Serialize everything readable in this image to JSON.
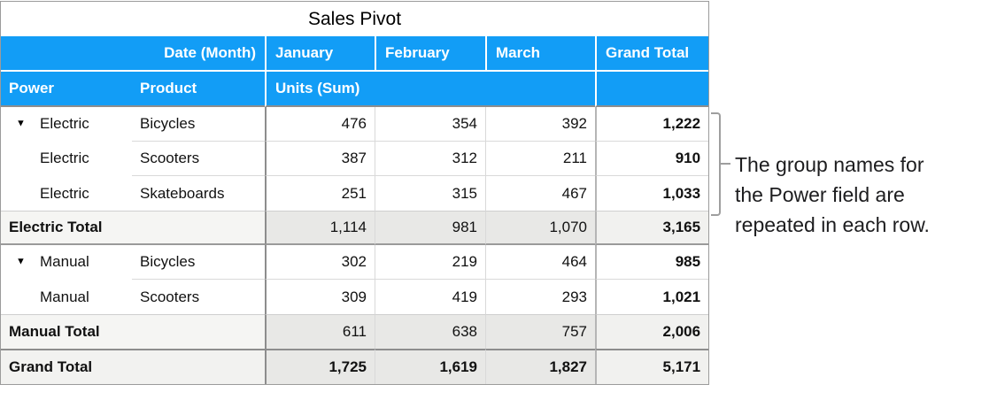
{
  "title": "Sales Pivot",
  "icons": {
    "disclosure": "▼"
  },
  "colors": {
    "header_blue": "#129DF6",
    "line_dark": "#8D8D8D",
    "line_light": "#D9D9D9",
    "total_row_bg": "#E8E8E6",
    "total_label_bg": "#F5F5F3",
    "grand_total_cell_bg": "#F1F1EF",
    "bracket_gray": "#9E9E9E"
  },
  "table": {
    "header_row1": {
      "date_label": "Date (Month)",
      "months": [
        "January",
        "February",
        "March"
      ],
      "grand_total": "Grand Total"
    },
    "header_row2": {
      "power": "Power",
      "product": "Product",
      "units": "Units (Sum)"
    },
    "rows": [
      {
        "type": "data",
        "disclosure": true,
        "power": "Electric",
        "product": "Bicycles",
        "values": [
          "476",
          "354",
          "392"
        ],
        "total": "1,222"
      },
      {
        "type": "data",
        "disclosure": false,
        "power": "Electric",
        "product": "Scooters",
        "values": [
          "387",
          "312",
          "211"
        ],
        "total": "910"
      },
      {
        "type": "data",
        "disclosure": false,
        "power": "Electric",
        "product": "Skateboards",
        "values": [
          "251",
          "315",
          "467"
        ],
        "total": "1,033"
      },
      {
        "type": "subtotal",
        "label": "Electric Total",
        "values": [
          "1,114",
          "981",
          "1,070"
        ],
        "total": "3,165"
      },
      {
        "type": "data",
        "disclosure": true,
        "power": "Manual",
        "product": "Bicycles",
        "values": [
          "302",
          "219",
          "464"
        ],
        "total": "985"
      },
      {
        "type": "data",
        "disclosure": false,
        "power": "Manual",
        "product": "Scooters",
        "values": [
          "309",
          "419",
          "293"
        ],
        "total": "1,021"
      },
      {
        "type": "subtotal",
        "label": "Manual Total",
        "values": [
          "611",
          "638",
          "757"
        ],
        "total": "2,006"
      },
      {
        "type": "grandtotal",
        "label": "Grand Total",
        "values": [
          "1,725",
          "1,619",
          "1,827"
        ],
        "total": "5,171"
      }
    ]
  },
  "annotation": {
    "lines": [
      "The group names for",
      "the Power field are",
      "repeated in each row."
    ]
  }
}
